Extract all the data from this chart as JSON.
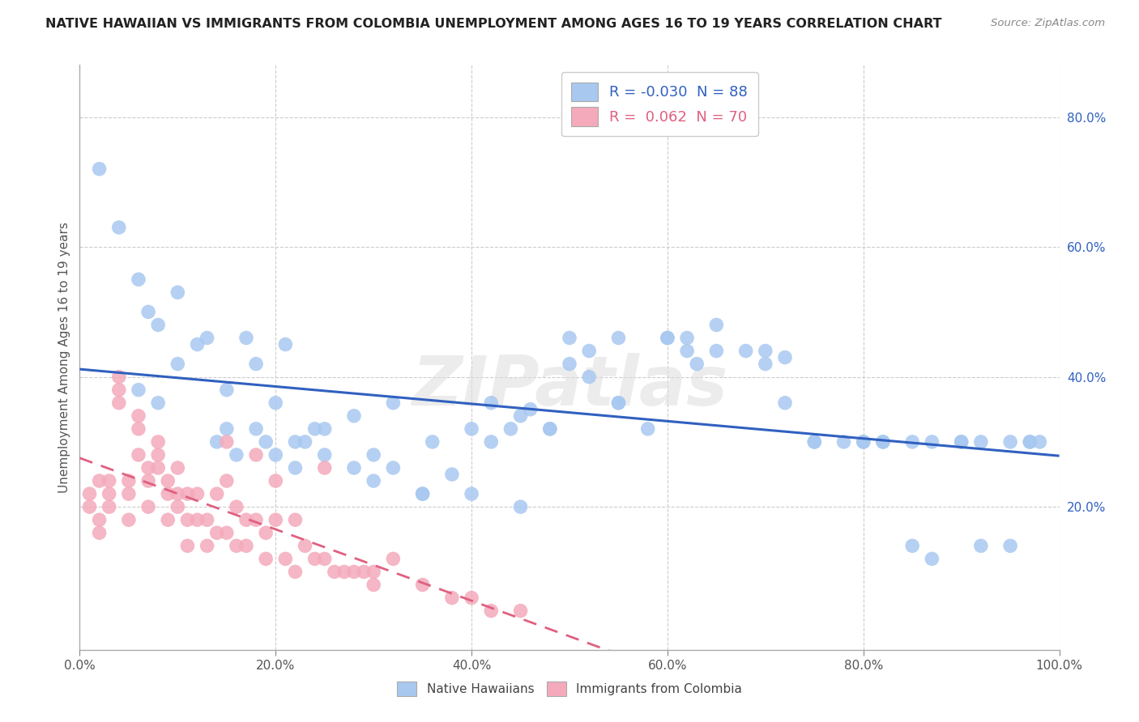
{
  "title": "NATIVE HAWAIIAN VS IMMIGRANTS FROM COLOMBIA UNEMPLOYMENT AMONG AGES 16 TO 19 YEARS CORRELATION CHART",
  "source": "Source: ZipAtlas.com",
  "ylabel": "Unemployment Among Ages 16 to 19 years",
  "xlim": [
    0,
    1.0
  ],
  "ylim": [
    -0.02,
    0.88
  ],
  "xtick_vals": [
    0.0,
    0.2,
    0.4,
    0.6,
    0.8,
    1.0
  ],
  "xtick_labels": [
    "0.0%",
    "20.0%",
    "40.0%",
    "60.0%",
    "80.0%",
    "100.0%"
  ],
  "ytick_right_vals": [
    0.2,
    0.4,
    0.6,
    0.8
  ],
  "ytick_right_labels": [
    "20.0%",
    "40.0%",
    "60.0%",
    "80.0%"
  ],
  "blue_color": "#A8C8F0",
  "pink_color": "#F4AABB",
  "blue_line_color": "#3060C0",
  "pink_line_color": "#E06080",
  "blue_R": -0.03,
  "blue_N": 88,
  "pink_R": 0.062,
  "pink_N": 70,
  "blue_scatter_x": [
    0.02,
    0.04,
    0.06,
    0.07,
    0.08,
    0.1,
    0.12,
    0.13,
    0.14,
    0.15,
    0.16,
    0.17,
    0.18,
    0.19,
    0.2,
    0.21,
    0.22,
    0.23,
    0.24,
    0.25,
    0.06,
    0.08,
    0.1,
    0.15,
    0.18,
    0.2,
    0.22,
    0.25,
    0.28,
    0.3,
    0.32,
    0.35,
    0.38,
    0.4,
    0.42,
    0.44,
    0.45,
    0.46,
    0.48,
    0.5,
    0.52,
    0.55,
    0.58,
    0.6,
    0.62,
    0.63,
    0.65,
    0.68,
    0.7,
    0.72,
    0.75,
    0.78,
    0.8,
    0.82,
    0.85,
    0.87,
    0.9,
    0.92,
    0.95,
    0.97,
    0.5,
    0.52,
    0.55,
    0.6,
    0.62,
    0.65,
    0.7,
    0.72,
    0.75,
    0.8,
    0.82,
    0.85,
    0.87,
    0.9,
    0.92,
    0.95,
    0.97,
    0.98,
    0.3,
    0.35,
    0.4,
    0.45,
    0.28,
    0.32,
    0.36,
    0.42,
    0.48,
    0.55
  ],
  "blue_scatter_y": [
    0.72,
    0.63,
    0.55,
    0.5,
    0.48,
    0.53,
    0.45,
    0.46,
    0.3,
    0.32,
    0.28,
    0.46,
    0.42,
    0.3,
    0.36,
    0.45,
    0.26,
    0.3,
    0.32,
    0.32,
    0.38,
    0.36,
    0.42,
    0.38,
    0.32,
    0.28,
    0.3,
    0.28,
    0.26,
    0.28,
    0.26,
    0.22,
    0.25,
    0.22,
    0.3,
    0.32,
    0.34,
    0.35,
    0.32,
    0.42,
    0.4,
    0.36,
    0.32,
    0.46,
    0.44,
    0.42,
    0.48,
    0.44,
    0.42,
    0.36,
    0.3,
    0.3,
    0.3,
    0.3,
    0.14,
    0.12,
    0.3,
    0.3,
    0.3,
    0.3,
    0.46,
    0.44,
    0.46,
    0.46,
    0.46,
    0.44,
    0.44,
    0.43,
    0.3,
    0.3,
    0.3,
    0.3,
    0.3,
    0.3,
    0.14,
    0.14,
    0.3,
    0.3,
    0.24,
    0.22,
    0.32,
    0.2,
    0.34,
    0.36,
    0.3,
    0.36,
    0.32,
    0.36
  ],
  "pink_scatter_x": [
    0.01,
    0.01,
    0.02,
    0.02,
    0.02,
    0.03,
    0.03,
    0.03,
    0.04,
    0.04,
    0.04,
    0.05,
    0.05,
    0.05,
    0.06,
    0.06,
    0.06,
    0.07,
    0.07,
    0.07,
    0.08,
    0.08,
    0.08,
    0.09,
    0.09,
    0.09,
    0.1,
    0.1,
    0.1,
    0.11,
    0.11,
    0.11,
    0.12,
    0.12,
    0.13,
    0.13,
    0.14,
    0.14,
    0.15,
    0.15,
    0.15,
    0.16,
    0.16,
    0.17,
    0.17,
    0.18,
    0.18,
    0.19,
    0.19,
    0.2,
    0.2,
    0.21,
    0.22,
    0.22,
    0.23,
    0.24,
    0.25,
    0.25,
    0.26,
    0.27,
    0.28,
    0.29,
    0.3,
    0.3,
    0.32,
    0.35,
    0.38,
    0.4,
    0.42,
    0.45
  ],
  "pink_scatter_y": [
    0.22,
    0.2,
    0.24,
    0.18,
    0.16,
    0.24,
    0.22,
    0.2,
    0.4,
    0.38,
    0.36,
    0.24,
    0.22,
    0.18,
    0.34,
    0.32,
    0.28,
    0.26,
    0.24,
    0.2,
    0.3,
    0.28,
    0.26,
    0.24,
    0.22,
    0.18,
    0.26,
    0.22,
    0.2,
    0.22,
    0.18,
    0.14,
    0.22,
    0.18,
    0.18,
    0.14,
    0.22,
    0.16,
    0.3,
    0.24,
    0.16,
    0.2,
    0.14,
    0.18,
    0.14,
    0.28,
    0.18,
    0.16,
    0.12,
    0.24,
    0.18,
    0.12,
    0.18,
    0.1,
    0.14,
    0.12,
    0.26,
    0.12,
    0.1,
    0.1,
    0.1,
    0.1,
    0.1,
    0.08,
    0.12,
    0.08,
    0.06,
    0.06,
    0.04,
    0.04
  ],
  "watermark": "ZIPatlas",
  "bottom_legend_blue": "Native Hawaiians",
  "bottom_legend_pink": "Immigrants from Colombia"
}
